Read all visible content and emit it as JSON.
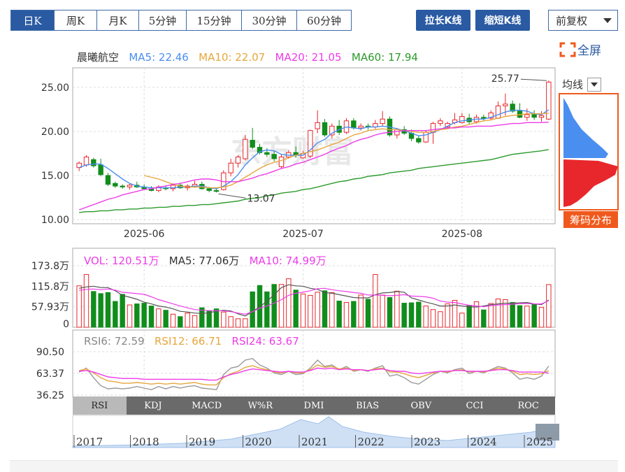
{
  "tabs": [
    {
      "label": "日K",
      "active": true
    },
    {
      "label": "周K"
    },
    {
      "label": "月K"
    },
    {
      "label": "5分钟"
    },
    {
      "label": "15分钟"
    },
    {
      "label": "30分钟"
    },
    {
      "label": "60分钟"
    }
  ],
  "buttons": {
    "lengthen": "拉长K线",
    "shorten": "缩短K线",
    "adjust": "前复权",
    "fullscreen": "全屏",
    "ma_select": "均线",
    "chip": "筹码分布"
  },
  "watermark": "东方财富",
  "legend": {
    "name": "晨曦航空",
    "ma5": "MA5: 22.46",
    "ma10": "MA10: 22.07",
    "ma20": "MA20: 21.05",
    "ma60": "MA60: 17.94"
  },
  "vol_legend": {
    "vol": "VOL: 120.51万",
    "ma5": "MA5: 77.06万",
    "ma10": "MA10: 74.99万"
  },
  "rsi_legend": {
    "rsi6": "RSI6: 72.59",
    "rsi12": "RSI12: 66.71",
    "rsi24": "RSI24: 63.67"
  },
  "colors": {
    "up": "#e8272c",
    "down": "#118d1c",
    "ma5": "#4a8ef0",
    "ma10": "#e6a73d",
    "ma20": "#ee3ce8",
    "ma60": "#2c9a2c",
    "accent": "#2a5aa2",
    "chip": "#f0591d"
  },
  "indicators": [
    "RSI",
    "KDJ",
    "MACD",
    "W%R",
    "DMI",
    "BIAS",
    "OBV",
    "CCI",
    "ROC"
  ],
  "years": [
    "2017",
    "2018",
    "2019",
    "2020",
    "2021",
    "2022",
    "2023",
    "2024",
    "2025"
  ],
  "chart_data": [
    {
      "type": "candlestick",
      "title": "晨曦航空",
      "ylim": [
        10,
        26.5
      ],
      "yticks": [
        "25.00",
        "20.00",
        "15.00",
        "10.00"
      ],
      "xticks": [
        "2025-06",
        "2025-07",
        "2025-08"
      ],
      "annotations": {
        "high": "25.77",
        "low": "13.07"
      },
      "ohlc": [
        [
          15.9,
          16.6,
          15.5,
          16.4
        ],
        [
          16.2,
          17.3,
          16.0,
          17.1
        ],
        [
          16.8,
          17.0,
          15.9,
          16.1
        ],
        [
          16.2,
          16.9,
          14.9,
          15.1
        ],
        [
          15.0,
          15.3,
          13.8,
          14.0
        ],
        [
          14.1,
          14.3,
          13.6,
          13.8
        ],
        [
          13.8,
          14.0,
          13.5,
          13.7
        ],
        [
          13.7,
          14.1,
          13.4,
          13.9
        ],
        [
          13.9,
          14.3,
          13.6,
          13.7
        ],
        [
          13.7,
          14.0,
          13.4,
          13.5
        ],
        [
          13.5,
          13.8,
          13.2,
          13.3
        ],
        [
          13.3,
          13.9,
          13.1,
          13.7
        ],
        [
          13.6,
          13.9,
          13.3,
          13.5
        ],
        [
          13.5,
          14.1,
          13.2,
          13.9
        ],
        [
          13.9,
          14.2,
          13.5,
          13.6
        ],
        [
          13.6,
          14.0,
          13.3,
          13.8
        ],
        [
          13.8,
          14.4,
          13.6,
          14.0
        ],
        [
          14.0,
          14.3,
          13.4,
          13.5
        ],
        [
          13.5,
          13.7,
          13.1,
          13.3
        ],
        [
          13.3,
          13.5,
          13.07,
          13.2
        ],
        [
          13.4,
          15.6,
          13.3,
          15.3
        ],
        [
          15.3,
          16.9,
          14.9,
          16.4
        ],
        [
          16.4,
          17.3,
          15.9,
          17.1
        ],
        [
          16.9,
          19.6,
          16.7,
          19.1
        ],
        [
          19.0,
          20.4,
          18.0,
          18.2
        ],
        [
          18.2,
          18.6,
          17.4,
          17.6
        ],
        [
          17.6,
          18.1,
          17.1,
          17.4
        ],
        [
          17.4,
          17.8,
          16.6,
          16.9
        ],
        [
          16.0,
          17.4,
          15.8,
          17.1
        ],
        [
          17.1,
          17.9,
          16.9,
          17.6
        ],
        [
          17.6,
          18.3,
          17.0,
          17.3
        ],
        [
          17.0,
          17.8,
          16.9,
          17.5
        ],
        [
          17.2,
          20.2,
          17.0,
          20.1
        ],
        [
          20.3,
          22.4,
          19.8,
          21.0
        ],
        [
          21.0,
          21.4,
          19.4,
          19.6
        ],
        [
          19.6,
          20.9,
          19.2,
          20.6
        ],
        [
          20.6,
          21.3,
          19.6,
          19.9
        ],
        [
          19.9,
          21.5,
          19.7,
          21.2
        ],
        [
          21.2,
          21.5,
          20.2,
          20.4
        ],
        [
          20.4,
          20.9,
          20.1,
          20.6
        ],
        [
          20.6,
          20.9,
          20.2,
          20.5
        ],
        [
          20.5,
          21.3,
          20.3,
          20.9
        ],
        [
          20.9,
          22.3,
          20.6,
          21.4
        ],
        [
          21.4,
          21.7,
          19.4,
          19.6
        ],
        [
          19.6,
          20.4,
          19.2,
          20.2
        ],
        [
          20.2,
          20.6,
          19.6,
          19.8
        ],
        [
          19.8,
          20.2,
          18.9,
          19.2
        ],
        [
          19.2,
          19.5,
          18.6,
          18.8
        ],
        [
          18.8,
          20.1,
          18.7,
          19.9
        ],
        [
          19.9,
          21.1,
          18.6,
          20.9
        ],
        [
          20.9,
          21.5,
          20.6,
          21.2
        ],
        [
          20.5,
          21.1,
          20.3,
          20.9
        ],
        [
          21.0,
          22.1,
          20.8,
          21.3
        ],
        [
          21.0,
          22.1,
          20.9,
          21.7
        ],
        [
          21.5,
          22.0,
          20.8,
          21.1
        ],
        [
          21.1,
          21.9,
          20.9,
          21.6
        ],
        [
          21.6,
          21.9,
          21.2,
          21.5
        ],
        [
          21.5,
          22.4,
          21.3,
          22.1
        ],
        [
          21.5,
          23.4,
          21.4,
          22.9
        ],
        [
          22.9,
          24.3,
          21.8,
          23.1
        ],
        [
          23.1,
          23.5,
          22.1,
          22.3
        ],
        [
          22.3,
          23.2,
          21.5,
          21.6
        ],
        [
          21.6,
          22.6,
          21.2,
          21.9
        ],
        [
          21.9,
          22.4,
          21.3,
          21.6
        ],
        [
          21.6,
          22.3,
          21.1,
          21.8
        ],
        [
          21.4,
          25.77,
          21.3,
          25.6
        ]
      ],
      "series": [
        {
          "name": "MA5",
          "values": [
            15.9,
            16.2,
            16.3,
            16.3,
            15.8,
            15.2,
            14.6,
            14.1,
            13.8,
            13.7,
            13.6,
            13.6,
            13.6,
            13.6,
            13.7,
            13.7,
            13.8,
            13.8,
            13.6,
            13.5,
            13.8,
            14.3,
            15.1,
            16.2,
            17.0,
            17.7,
            17.9,
            17.8,
            17.4,
            17.3,
            17.3,
            17.3,
            17.9,
            18.7,
            19.1,
            19.8,
            20.2,
            20.5,
            20.4,
            20.3,
            20.5,
            20.5,
            20.6,
            20.5,
            20.3,
            20.1,
            19.8,
            19.5,
            19.6,
            19.9,
            20.2,
            20.6,
            21.0,
            21.2,
            21.3,
            21.4,
            21.4,
            21.6,
            21.9,
            22.2,
            22.4,
            22.4,
            22.3,
            22.0,
            21.9,
            22.46
          ]
        },
        {
          "name": "MA10",
          "values": [
            null,
            null,
            null,
            null,
            null,
            null,
            null,
            null,
            null,
            15.0,
            14.8,
            14.6,
            14.3,
            14.0,
            13.8,
            13.7,
            13.7,
            13.7,
            13.6,
            13.6,
            13.7,
            13.9,
            14.3,
            14.8,
            15.3,
            15.8,
            16.2,
            16.5,
            16.7,
            17.0,
            17.3,
            17.5,
            17.7,
            17.9,
            18.2,
            18.5,
            18.8,
            19.2,
            19.6,
            19.8,
            20.1,
            20.2,
            20.3,
            20.2,
            20.2,
            20.1,
            20.0,
            19.9,
            19.9,
            20.0,
            20.2,
            20.3,
            20.5,
            20.6,
            20.8,
            21.0,
            21.2,
            21.3,
            21.5,
            21.7,
            21.8,
            21.9,
            22.0,
            22.0,
            22.0,
            22.07
          ]
        },
        {
          "name": "MA20",
          "values": [
            11.1,
            11.4,
            11.7,
            12.0,
            12.3,
            12.5,
            12.8,
            13.0,
            13.2,
            13.4,
            13.5,
            13.7,
            13.8,
            14.0,
            14.1,
            14.3,
            14.5,
            14.6,
            14.6,
            14.5,
            14.3,
            14.3,
            14.3,
            14.5,
            14.7,
            15.0,
            15.2,
            15.5,
            15.8,
            16.0,
            16.3,
            16.5,
            16.8,
            17.1,
            17.4,
            17.8,
            18.1,
            18.4,
            18.8,
            19.1,
            19.3,
            19.6,
            19.8,
            19.9,
            20.0,
            20.1,
            20.1,
            20.1,
            20.1,
            20.2,
            20.3,
            20.4,
            20.4,
            20.5,
            20.5,
            20.6,
            20.6,
            20.6,
            20.7,
            20.8,
            20.9,
            20.9,
            21.0,
            21.0,
            21.0,
            21.05
          ]
        },
        {
          "name": "MA60",
          "values": [
            10.8,
            10.9,
            10.9,
            11.0,
            11.0,
            11.1,
            11.1,
            11.2,
            11.2,
            11.3,
            11.3,
            11.4,
            11.4,
            11.5,
            11.5,
            11.6,
            11.6,
            11.7,
            11.7,
            11.8,
            11.9,
            12.0,
            12.1,
            12.3,
            12.4,
            12.5,
            12.7,
            12.8,
            13.0,
            13.1,
            13.2,
            13.4,
            13.5,
            13.7,
            13.9,
            14.1,
            14.3,
            14.4,
            14.6,
            14.7,
            14.9,
            15.0,
            15.1,
            15.3,
            15.4,
            15.5,
            15.6,
            15.8,
            15.9,
            16.0,
            16.1,
            16.2,
            16.3,
            16.4,
            16.5,
            16.6,
            16.7,
            16.8,
            17.0,
            17.2,
            17.4,
            17.5,
            17.6,
            17.7,
            17.8,
            17.94
          ]
        }
      ]
    },
    {
      "type": "bar",
      "title": "VOL",
      "unit": "万",
      "yticks": [
        "173.8万",
        "115.8万",
        "57.93万",
        "0"
      ],
      "ylim": [
        0,
        173.8
      ],
      "values": [
        117,
        149,
        101,
        95,
        98,
        73,
        93,
        63,
        66,
        68,
        60,
        52,
        48,
        37,
        30,
        40,
        33,
        55,
        46,
        52,
        43,
        30,
        24,
        24,
        100,
        118,
        100,
        121,
        121,
        137,
        105,
        94,
        90,
        99,
        103,
        98,
        74,
        70,
        73,
        91,
        79,
        149,
        91,
        84,
        102,
        68,
        69,
        71,
        60,
        50,
        44,
        66,
        76,
        40,
        62,
        72,
        49,
        67,
        80,
        78,
        70,
        61,
        60,
        66,
        56,
        120.51
      ],
      "series": [
        {
          "name": "MA5",
          "values": [
            110,
            114,
            116,
            112,
            112,
            103,
            90,
            85,
            79,
            71,
            66,
            60,
            57,
            52,
            45,
            43,
            40,
            39,
            41,
            45,
            48,
            46,
            38,
            32,
            44,
            58,
            73,
            92,
            112,
            120,
            117,
            116,
            110,
            107,
            98,
            96,
            92,
            88,
            84,
            83,
            83,
            92,
            97,
            98,
            101,
            99,
            83,
            77,
            71,
            66,
            60,
            60,
            63,
            60,
            58,
            57,
            60,
            64,
            66,
            68,
            68,
            69,
            70,
            66,
            64,
            77.06
          ]
        },
        {
          "name": "MA10",
          "values": [
            104,
            107,
            108,
            106,
            108,
            105,
            99,
            97,
            95,
            93,
            86,
            78,
            72,
            66,
            60,
            55,
            50,
            48,
            47,
            47,
            46,
            44,
            40,
            37,
            44,
            54,
            60,
            68,
            78,
            90,
            96,
            99,
            103,
            109,
            110,
            106,
            103,
            101,
            98,
            96,
            91,
            91,
            90,
            89,
            90,
            92,
            88,
            87,
            86,
            82,
            74,
            71,
            70,
            66,
            62,
            60,
            58,
            61,
            63,
            64,
            65,
            67,
            67,
            66,
            66,
            74.99
          ]
        }
      ]
    },
    {
      "type": "line",
      "title": "RSI",
      "yticks": [
        "90.50",
        "63.37",
        "36.25"
      ],
      "ylim": [
        36.25,
        90.5
      ],
      "series": [
        {
          "name": "RSI6",
          "values": [
            65,
            70,
            58,
            48,
            44,
            45,
            44,
            45,
            47,
            45,
            43,
            47,
            44,
            47,
            45,
            47,
            48,
            45,
            44,
            43,
            62,
            70,
            72,
            80,
            82,
            74,
            70,
            64,
            62,
            66,
            62,
            63,
            70,
            80,
            72,
            74,
            68,
            72,
            66,
            68,
            66,
            70,
            73,
            60,
            62,
            58,
            52,
            50,
            56,
            62,
            66,
            64,
            68,
            70,
            63,
            66,
            64,
            68,
            72,
            70,
            64,
            56,
            58,
            56,
            60,
            72.59
          ]
        },
        {
          "name": "RSI12",
          "values": [
            67,
            69,
            64,
            58,
            54,
            53,
            51,
            51,
            52,
            51,
            50,
            51,
            50,
            51,
            50,
            51,
            52,
            50,
            49,
            49,
            58,
            63,
            66,
            71,
            73,
            70,
            68,
            65,
            64,
            66,
            64,
            64,
            68,
            74,
            71,
            72,
            69,
            70,
            67,
            68,
            67,
            69,
            70,
            65,
            65,
            63,
            60,
            58,
            61,
            64,
            66,
            65,
            67,
            68,
            65,
            66,
            65,
            67,
            70,
            69,
            66,
            62,
            63,
            62,
            63,
            66.71
          ]
        },
        {
          "name": "RSI24",
          "values": [
            66,
            67,
            65,
            62,
            59,
            58,
            57,
            57,
            57,
            56,
            56,
            56,
            56,
            56,
            56,
            56,
            56,
            56,
            55,
            55,
            59,
            62,
            64,
            67,
            69,
            68,
            67,
            66,
            65,
            66,
            65,
            65,
            67,
            70,
            69,
            70,
            68,
            69,
            68,
            68,
            67,
            68,
            69,
            67,
            66,
            66,
            64,
            63,
            64,
            65,
            66,
            66,
            67,
            67,
            66,
            66,
            66,
            67,
            68,
            68,
            67,
            65,
            65,
            65,
            65,
            63.67
          ]
        }
      ]
    }
  ]
}
